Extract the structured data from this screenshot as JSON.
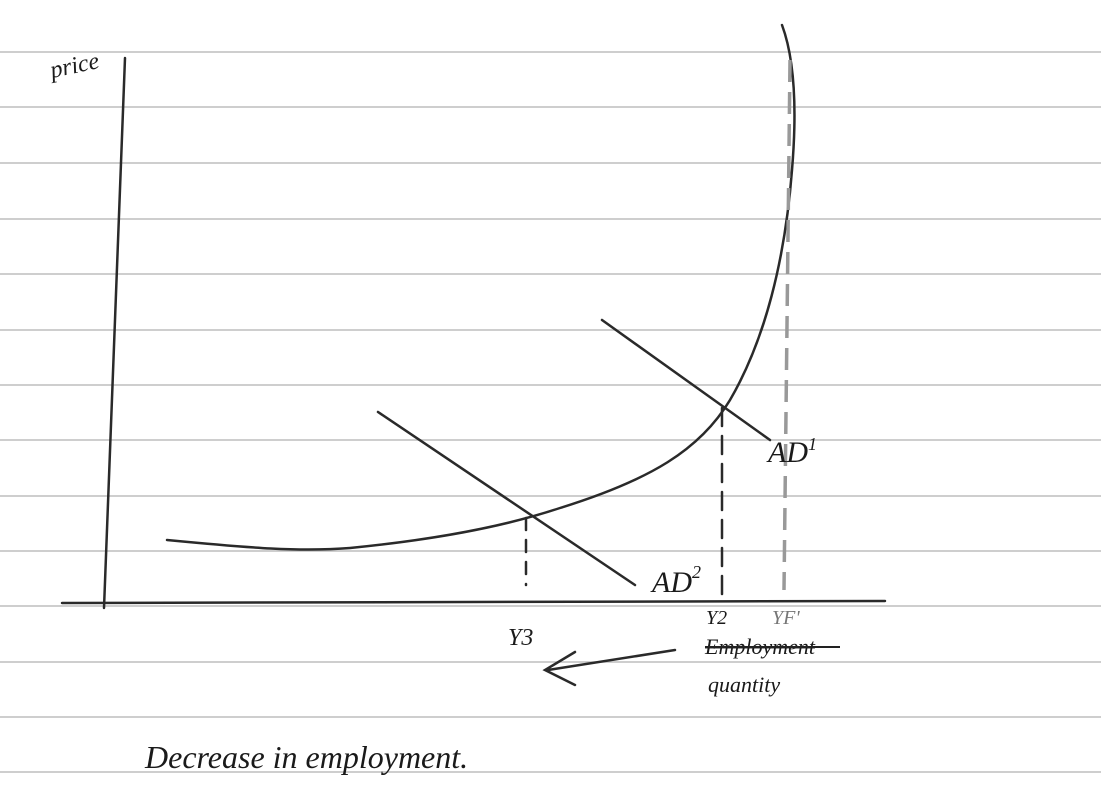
{
  "axes": {
    "y_label": "price",
    "x_label_struck": "Employment",
    "x_label": "quantity"
  },
  "curves": [
    {
      "label": "AD",
      "sup": "1"
    },
    {
      "label": "AD",
      "sup": "2"
    }
  ],
  "x_marks": [
    "Y3",
    "Y2",
    "YF'"
  ],
  "note": "Decrease in employment."
}
